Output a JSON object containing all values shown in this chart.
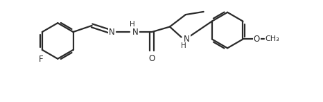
{
  "background_color": "#ffffff",
  "line_color": "#2a2a2a",
  "line_width": 1.6,
  "font_size": 8.5,
  "figsize": [
    4.66,
    1.47
  ],
  "dpi": 100,
  "xlim": [
    0,
    9.8
  ],
  "ylim": [
    0,
    3.5
  ]
}
